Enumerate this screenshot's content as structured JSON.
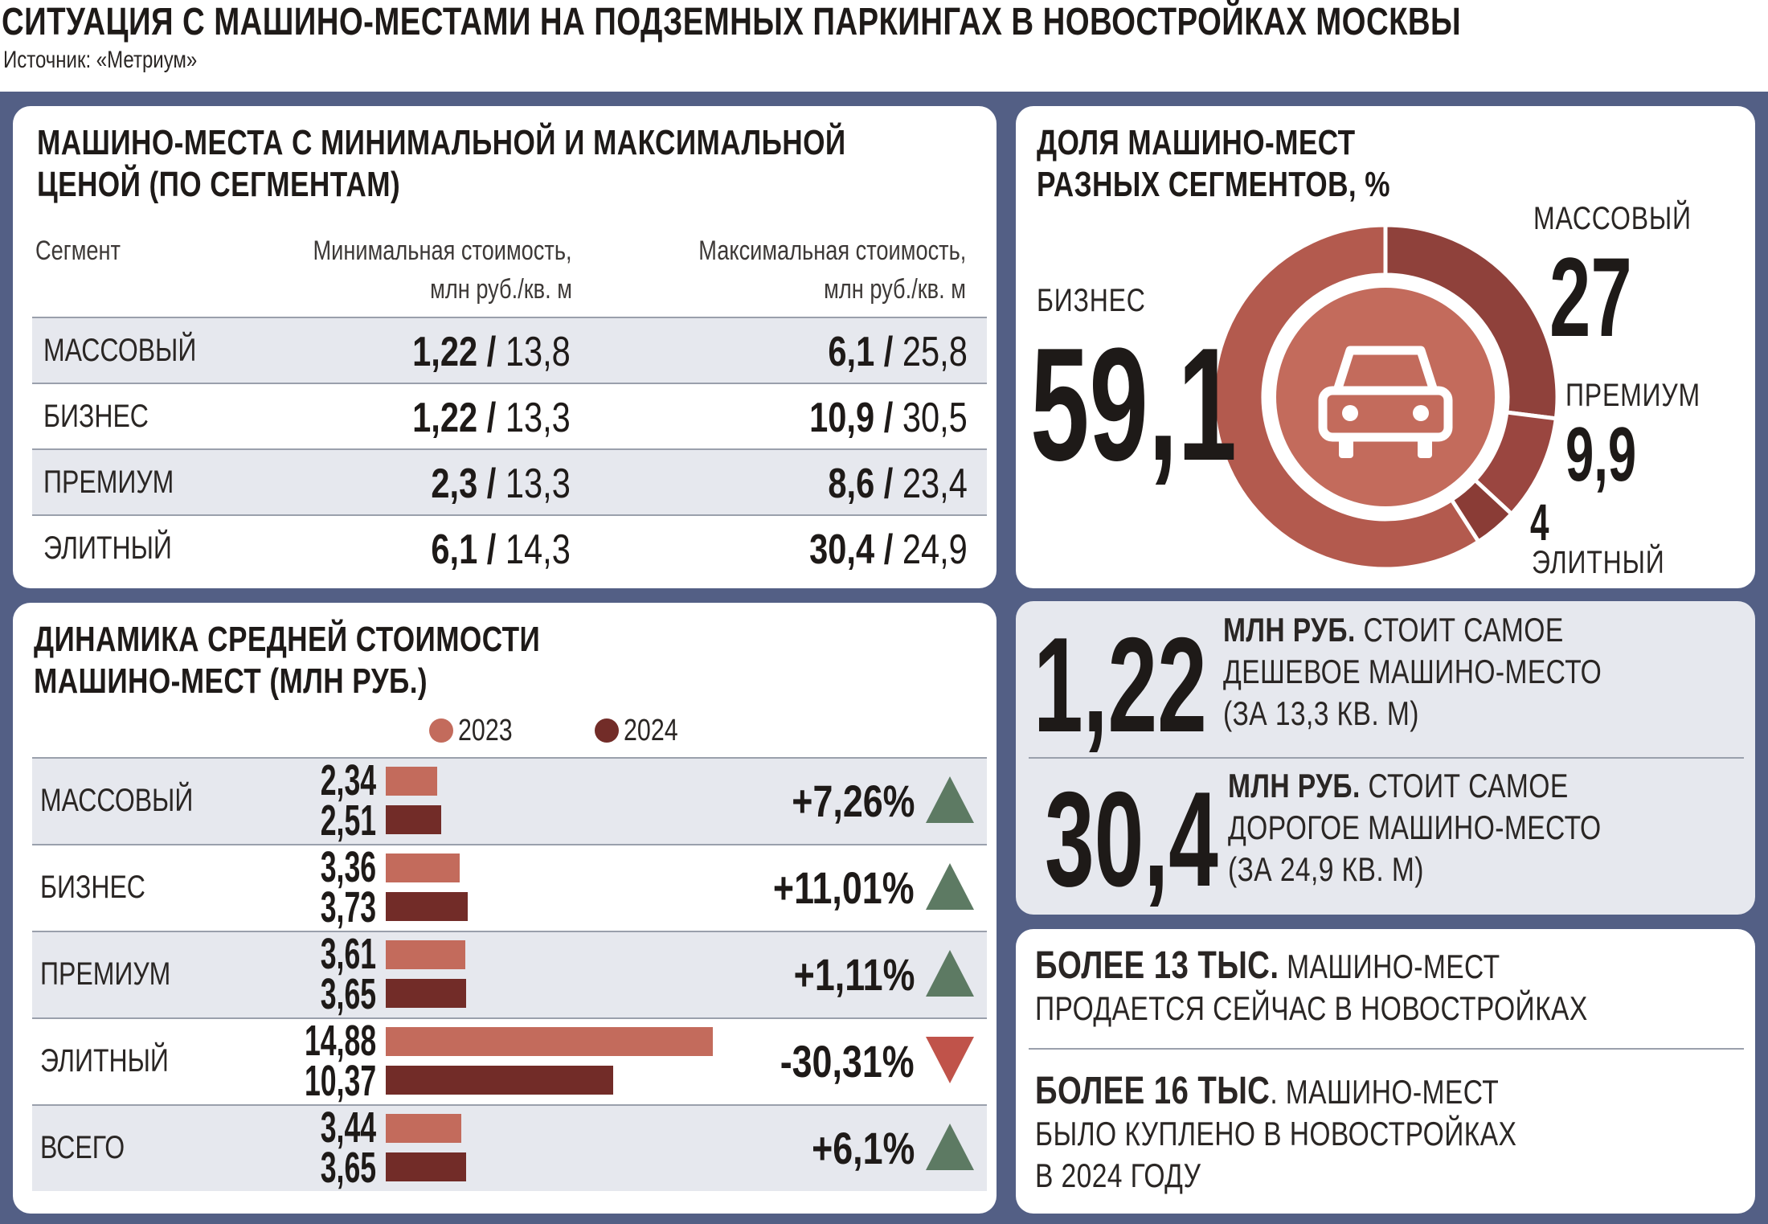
{
  "title": "СИТУАЦИЯ С МАШИНО-МЕСТАМИ НА ПОДЗЕМНЫХ ПАРКИНГАХ В НОВОСТРОЙКАХ МОСКВЫ",
  "source": "Источник: «Метриум»",
  "colors": {
    "frame": "#535f85",
    "series_2023": "#c36b5c",
    "series_2024": "#722c28",
    "up_arrow": "#5d7a63",
    "down_arrow": "#c0534a",
    "donut_business": "#b35a4e",
    "donut_mass": "#8f413b",
    "donut_premium": "#9a4640",
    "donut_elite": "#8a3c36",
    "donut_center": "#c36b5c"
  },
  "icons": {
    "donut_center": "car-icon"
  },
  "price_table": {
    "title_line1": "МАШИНО-МЕСТА С МИНИМАЛЬНОЙ И МАКСИМАЛЬНОЙ",
    "title_line2": "ЦЕНОЙ (ПО СЕГМЕНТАМ)",
    "col_segment": "Сегмент",
    "col_min_line1": "Минимальная стоимость,",
    "col_min_line2": "млн руб./кв. м",
    "col_max_line1": "Максимальная стоимость,",
    "col_max_line2": "млн руб./кв. м",
    "rows": [
      {
        "segment": "МАССОВЫЙ",
        "min_price": "1,22",
        "min_area": "13,8",
        "max_price": "6,1",
        "max_area": "25,8"
      },
      {
        "segment": "БИЗНЕС",
        "min_price": "1,22",
        "min_area": "13,3",
        "max_price": "10,9",
        "max_area": "30,5"
      },
      {
        "segment": "ПРЕМИУМ",
        "min_price": "2,3",
        "min_area": "13,3",
        "max_price": "8,6",
        "max_area": "23,4"
      },
      {
        "segment": "ЭЛИТНЫЙ",
        "min_price": "6,1",
        "min_area": "14,3",
        "max_price": "30,4",
        "max_area": "24,9"
      }
    ],
    "separator": "/"
  },
  "chart_data": [
    {
      "type": "pie",
      "title": "ДОЛЯ МАШИНО-МЕСТ РАЗНЫХ СЕГМЕНТОВ, %",
      "title_line1": "ДОЛЯ МАШИНО-МЕСТ",
      "title_line2": "РАЗНЫХ СЕГМЕНТОВ, %",
      "slices": [
        {
          "label": "БИЗНЕС",
          "value": 59.1,
          "display": "59,1"
        },
        {
          "label": "МАССОВЫЙ",
          "value": 27,
          "display": "27"
        },
        {
          "label": "ПРЕМИУМ",
          "value": 9.9,
          "display": "9,9"
        },
        {
          "label": "ЭЛИТНЫЙ",
          "value": 4,
          "display": "4"
        }
      ]
    },
    {
      "type": "bar",
      "orientation": "horizontal",
      "title": "ДИНАМИКА СРЕДНЕЙ СТОИМОСТИ МАШИНО-МЕСТ (МЛН РУБ.)",
      "title_line1": "ДИНАМИКА СРЕДНЕЙ СТОИМОСТИ",
      "title_line2": "МАШИНО-МЕСТ (МЛН РУБ.)",
      "categories": [
        "МАССОВЫЙ",
        "БИЗНЕС",
        "ПРЕМИУМ",
        "ЭЛИТНЫЙ",
        "ВСЕГО"
      ],
      "series": [
        {
          "name": "2023",
          "values": [
            2.34,
            3.36,
            3.61,
            14.88,
            3.44
          ],
          "labels": [
            "2,34",
            "3,36",
            "3,61",
            "14,88",
            "3,44"
          ]
        },
        {
          "name": "2024",
          "values": [
            2.51,
            3.73,
            3.65,
            10.37,
            3.65
          ],
          "labels": [
            "2,51",
            "3,73",
            "3,65",
            "10,37",
            "3,65"
          ]
        }
      ],
      "changes": [
        "+7,26%",
        "+11,01%",
        "+1,11%",
        "-30,31%",
        "+6,1%"
      ],
      "directions": [
        "up",
        "up",
        "up",
        "down",
        "up"
      ],
      "xlim": [
        0,
        15
      ]
    }
  ],
  "facts": {
    "cheapest_value": "1,22",
    "cheapest_bold": "МЛН РУБ.",
    "cheapest_line1": " СТОИТ САМОЕ",
    "cheapest_line2": "ДЕШЕВОЕ МАШИНО-МЕСТО",
    "cheapest_line3": "(ЗА 13,3 КВ. М)",
    "priciest_value": "30,4",
    "priciest_bold": "МЛН РУБ.",
    "priciest_line1": " СТОИТ САМОЕ",
    "priciest_line2": "ДОРОГОЕ МАШИНО-МЕСТО",
    "priciest_line3": "(ЗА 24,9 КВ. М)",
    "on_sale_bold": "БОЛЕЕ 13 ТЫС.",
    "on_sale_line1": " МАШИНО-МЕСТ",
    "on_sale_line2": "ПРОДАЕТСЯ СЕЙЧАС В НОВОСТРОЙКАХ",
    "bought_bold": "БОЛЕЕ 16 ТЫС",
    "bought_line1": ". МАШИНО-МЕСТ",
    "bought_line2": "БЫЛО КУПЛЕНО В НОВОСТРОЙКАХ",
    "bought_line3": "В 2024 ГОДУ"
  }
}
